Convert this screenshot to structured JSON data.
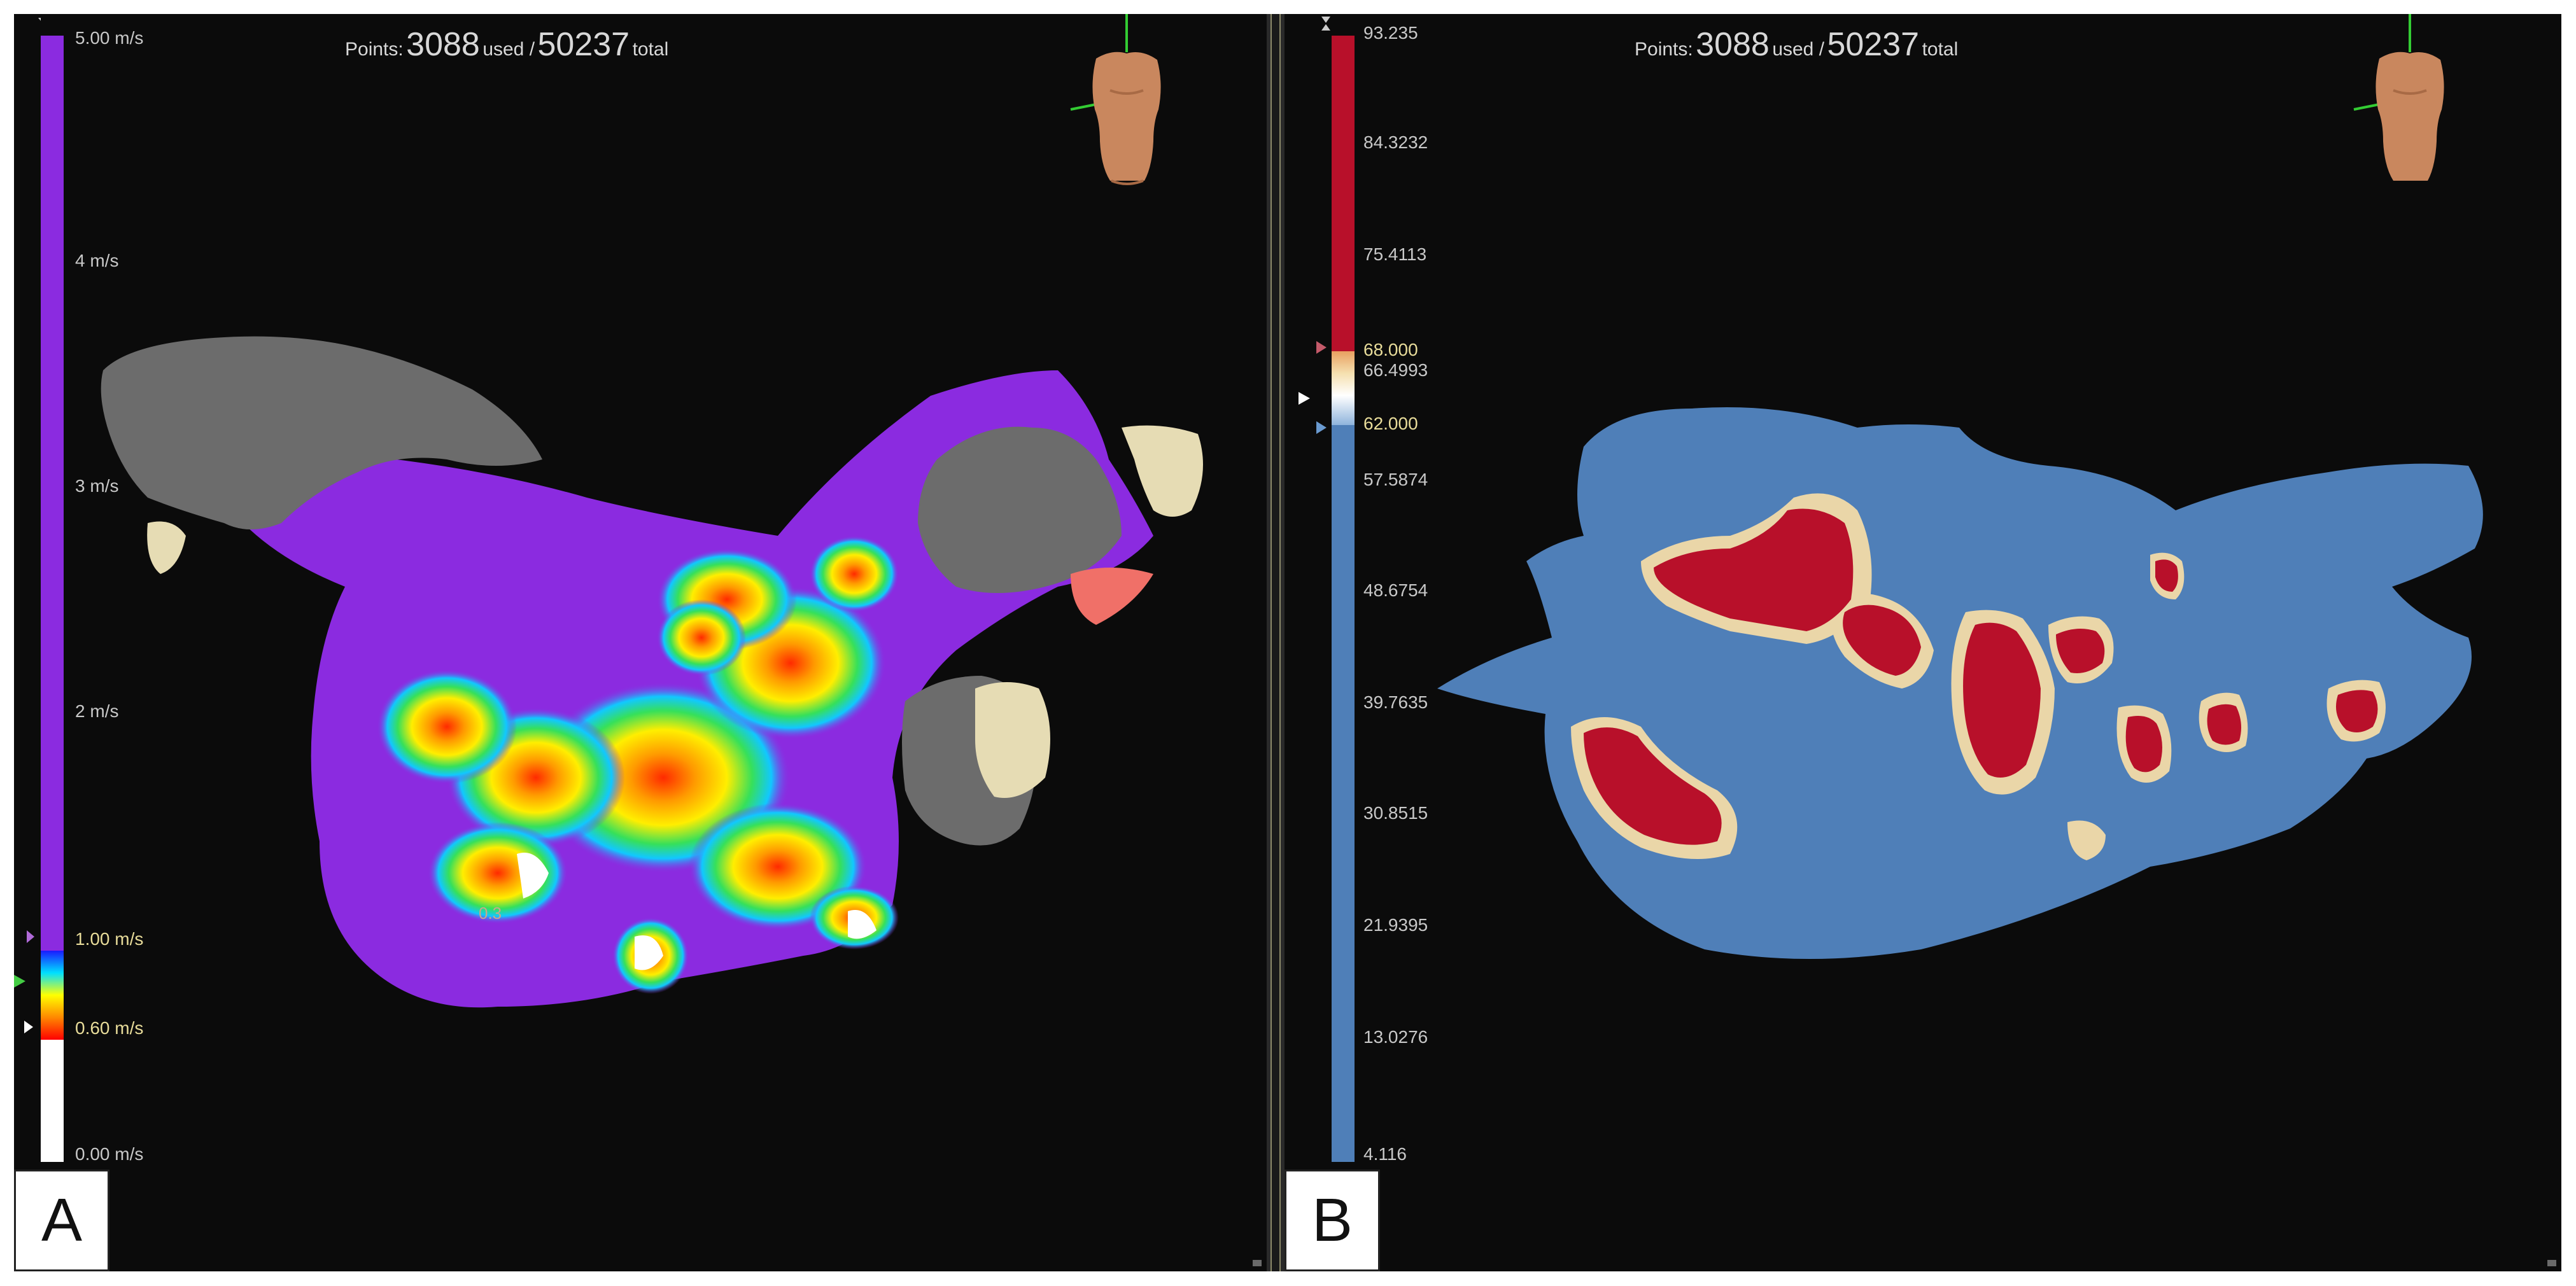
{
  "panels": [
    {
      "letter": "A",
      "points_label": "Points:",
      "used_count": "3088",
      "used_word": "used /",
      "total_count": "50237",
      "total_word": "total",
      "scale_ticks": [
        "5.00 m/s",
        "4 m/s",
        "3 m/s",
        "2 m/s",
        "1.00 m/s",
        "0.60 m/s",
        "0.00 m/s"
      ],
      "map_label": "0.3"
    },
    {
      "letter": "B",
      "points_label": "Points:",
      "used_count": "3088",
      "used_word": "used /",
      "total_count": "50237",
      "total_word": "total",
      "scale_ticks": [
        "93.235",
        "84.3232",
        "75.4113",
        "68.000",
        "66.4993",
        "62.000",
        "57.5874",
        "48.6754",
        "39.7635",
        "30.8515",
        "21.9395",
        "13.0276",
        "4.116"
      ]
    }
  ],
  "colors": {
    "background": "#0b0b0b",
    "velocity_purple": "#8b2be0",
    "scar_gray": "#6c6c6c",
    "beige": "#e6dcb4",
    "voltage_red": "#b8102a",
    "voltage_blue": "#4f7fb8"
  }
}
